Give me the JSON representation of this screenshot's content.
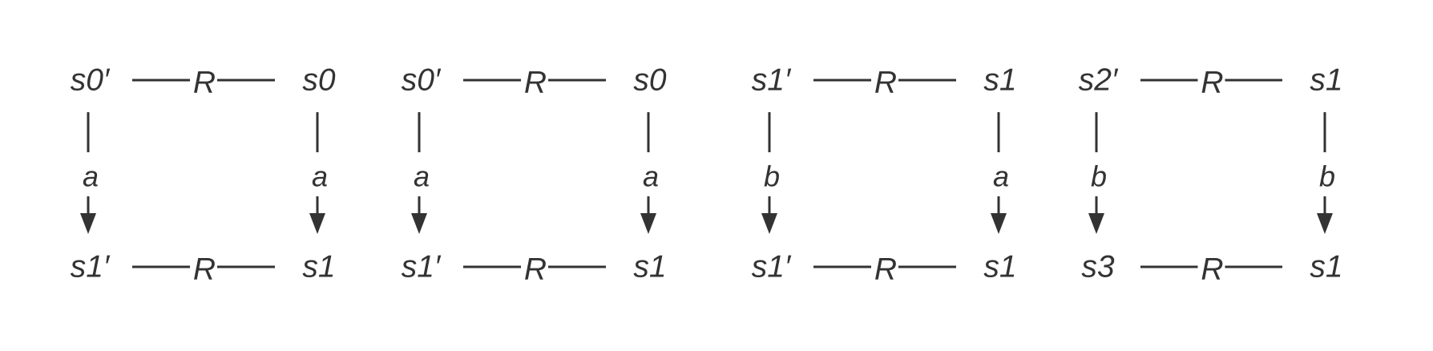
{
  "colors": {
    "ink": "#333333",
    "background": "#ffffff"
  },
  "diagrams": [
    {
      "top_left": "s0′",
      "top_right": "s0",
      "top_relation": "R",
      "left_action": "a",
      "right_action": "a",
      "bottom_left": "s1′",
      "bottom_right": "s1",
      "bottom_relation": "R"
    },
    {
      "top_left": "s0′",
      "top_right": "s0",
      "top_relation": "R",
      "left_action": "a",
      "right_action": "a",
      "bottom_left": "s1′",
      "bottom_right": "s1",
      "bottom_relation": "R"
    },
    {
      "top_left": "s1′",
      "top_right": "s1",
      "top_relation": "R",
      "left_action": "b",
      "right_action": "a",
      "bottom_left": "s1′",
      "bottom_right": "s1",
      "bottom_relation": "R"
    },
    {
      "top_left": "s2′",
      "top_right": "s1",
      "top_relation": "R",
      "left_action": "b",
      "right_action": "b",
      "bottom_left": "s3",
      "bottom_right": "s1",
      "bottom_relation": "R"
    }
  ]
}
